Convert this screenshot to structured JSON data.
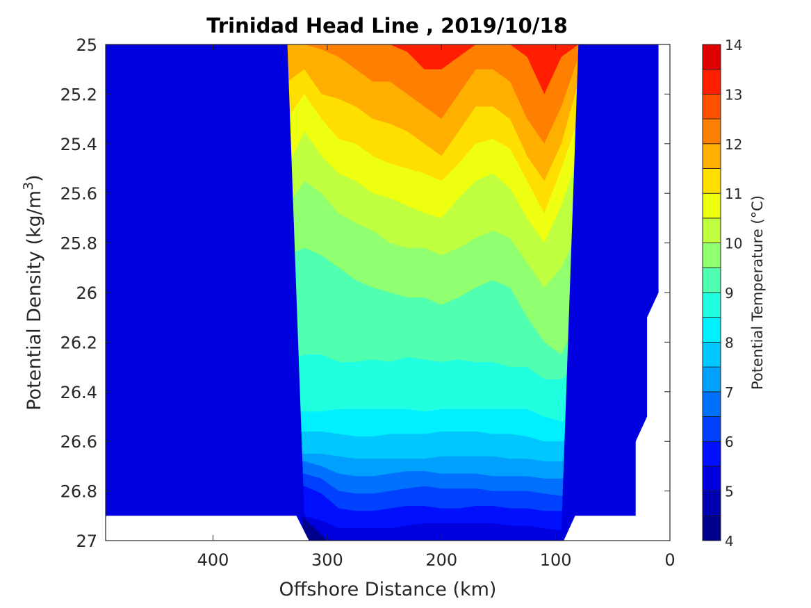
{
  "chart_data": {
    "type": "contourf",
    "title": "Trinidad Head Line , 2019/10/18",
    "xlabel": "Offshore Distance (km)",
    "ylabel": "Potential Density (kg/m",
    "ylabel_superscript": "3",
    "ylabel_suffix": ")",
    "colorbar_label": "Potential Temperature (°C)",
    "xlim": [
      494,
      0
    ],
    "x_reversed": true,
    "ylim": [
      25,
      27
    ],
    "y_reversed": true,
    "xticks": [
      400,
      300,
      200,
      100,
      0
    ],
    "xtick_labels": [
      "400",
      "300",
      "200",
      "100",
      "0"
    ],
    "yticks": [
      25,
      25.2,
      25.4,
      25.6,
      25.8,
      26,
      26.2,
      26.4,
      26.6,
      26.8,
      27
    ],
    "ytick_labels": [
      "25",
      "25.2",
      "25.4",
      "25.6",
      "25.8",
      "26",
      "26.2",
      "26.4",
      "26.6",
      "26.8",
      "27"
    ],
    "colorbar": {
      "range": [
        4,
        14
      ],
      "ticks": [
        4,
        5,
        6,
        7,
        8,
        9,
        10,
        11,
        12,
        13,
        14
      ],
      "tick_labels": [
        "4",
        "5",
        "6",
        "7",
        "8",
        "9",
        "10",
        "11",
        "12",
        "13",
        "14"
      ],
      "levels": [
        4,
        4.5,
        5,
        5.5,
        6,
        6.5,
        7,
        7.5,
        8,
        8.5,
        9,
        9.5,
        10,
        10.5,
        11,
        11.5,
        12,
        12.5,
        13,
        13.5,
        14
      ],
      "colors": [
        "#00008f",
        "#0000b0",
        "#0000df",
        "#0010ff",
        "#0040ff",
        "#0070ff",
        "#00a0ff",
        "#00c8ff",
        "#00f0ff",
        "#20ffdf",
        "#50ffaf",
        "#90ff70",
        "#bfff40",
        "#efff10",
        "#ffdf00",
        "#ffaf00",
        "#ff7f00",
        "#ff4f00",
        "#ff1f00",
        "#df0000",
        "#af0000"
      ],
      "colormap": "jet"
    },
    "x_samples": [
      494,
      480,
      465,
      450,
      440,
      425,
      410,
      395,
      380,
      365,
      350,
      335,
      320,
      305,
      290,
      275,
      260,
      245,
      230,
      215,
      200,
      185,
      170,
      155,
      140,
      125,
      110,
      95,
      80,
      65,
      50,
      35,
      20,
      10
    ],
    "isotherms": [
      {
        "level": 12.5,
        "y": [
          null,
          null,
          null,
          null,
          null,
          null,
          null,
          null,
          null,
          null,
          null,
          null,
          null,
          null,
          null,
          null,
          25.0,
          25.0,
          25.03,
          25.1,
          25.1,
          25.05,
          25.0,
          25.0,
          25.0,
          25.05,
          25.2,
          25.05,
          25.0,
          null,
          null,
          null,
          null,
          25.0
        ]
      },
      {
        "level": 12.0,
        "y": [
          null,
          null,
          null,
          null,
          null,
          null,
          null,
          null,
          null,
          25.0,
          25.0,
          25.0,
          25.0,
          25.02,
          25.05,
          25.1,
          25.15,
          25.15,
          25.2,
          25.25,
          25.3,
          25.2,
          25.1,
          25.1,
          25.15,
          25.3,
          25.4,
          25.25,
          25.05,
          25.0,
          null,
          null,
          25.0,
          25.05
        ]
      },
      {
        "level": 11.5,
        "y": [
          null,
          null,
          null,
          null,
          null,
          null,
          null,
          null,
          null,
          25.0,
          25.0,
          25.15,
          25.1,
          25.2,
          25.22,
          25.25,
          25.3,
          25.32,
          25.35,
          25.4,
          25.45,
          25.35,
          25.25,
          25.25,
          25.3,
          25.45,
          25.55,
          25.4,
          25.15,
          25.0,
          null,
          25.0,
          25.15,
          25.35
        ]
      },
      {
        "level": 11.0,
        "y": [
          25.0,
          25.0,
          25.1,
          25.1,
          25.0,
          null,
          null,
          null,
          null,
          25.05,
          25.2,
          25.3,
          25.2,
          25.3,
          25.38,
          25.4,
          25.45,
          25.48,
          25.5,
          25.52,
          25.55,
          25.48,
          25.4,
          25.38,
          25.42,
          25.55,
          25.68,
          25.5,
          25.3,
          25.05,
          25.0,
          25.05,
          25.3,
          25.55
        ]
      },
      {
        "level": 10.5,
        "y": [
          25.0,
          25.05,
          25.2,
          25.2,
          25.05,
          25.05,
          25.0,
          25.0,
          25.0,
          25.2,
          25.4,
          25.5,
          25.35,
          25.45,
          25.52,
          25.55,
          25.6,
          25.62,
          25.65,
          25.68,
          25.7,
          25.62,
          25.55,
          25.52,
          25.58,
          25.7,
          25.8,
          25.65,
          25.45,
          25.2,
          25.1,
          25.3,
          25.5,
          25.7
        ]
      },
      {
        "level": 10.0,
        "y": [
          25.35,
          25.3,
          25.4,
          25.55,
          25.45,
          25.3,
          25.3,
          25.3,
          25.2,
          25.35,
          25.55,
          25.65,
          25.55,
          25.6,
          25.68,
          25.72,
          25.75,
          25.8,
          25.82,
          25.82,
          25.85,
          25.82,
          25.78,
          25.75,
          25.78,
          25.88,
          25.98,
          25.9,
          25.75,
          25.5,
          25.35,
          25.55,
          25.75,
          25.8
        ]
      },
      {
        "level": 9.5,
        "y": [
          25.65,
          25.55,
          25.65,
          25.85,
          25.75,
          25.55,
          25.5,
          25.45,
          25.35,
          25.55,
          25.75,
          25.85,
          25.82,
          25.85,
          25.9,
          25.95,
          25.98,
          26.0,
          26.02,
          26.02,
          26.05,
          26.02,
          25.98,
          25.95,
          25.98,
          26.1,
          26.2,
          26.25,
          26.1,
          25.9,
          25.95,
          26.08,
          26.1,
          26.1
        ]
      },
      {
        "level": 9.0,
        "y": [
          26.3,
          26.35,
          26.2,
          26.05,
          26.15,
          26.25,
          26.2,
          26.2,
          26.25,
          26.22,
          26.3,
          26.28,
          26.25,
          26.25,
          26.28,
          26.28,
          26.27,
          26.28,
          26.26,
          26.27,
          26.28,
          26.27,
          26.28,
          26.28,
          26.3,
          26.3,
          26.35,
          26.35,
          26.3,
          26.3,
          26.25,
          26.25,
          26.25,
          null
        ]
      },
      {
        "level": 8.5,
        "y": [
          26.45,
          26.5,
          26.45,
          26.45,
          26.47,
          26.48,
          26.47,
          26.48,
          26.48,
          26.47,
          26.47,
          26.47,
          26.48,
          26.48,
          26.47,
          26.47,
          26.47,
          26.47,
          26.47,
          26.48,
          26.47,
          26.47,
          26.47,
          26.47,
          26.47,
          26.47,
          26.5,
          26.52,
          26.5,
          26.48,
          26.45,
          26.45,
          26.45,
          null
        ]
      },
      {
        "level": 8.0,
        "y": [
          26.6,
          26.6,
          26.57,
          26.56,
          26.56,
          26.57,
          26.57,
          26.58,
          26.58,
          26.58,
          26.58,
          26.57,
          26.56,
          26.56,
          26.57,
          26.58,
          26.58,
          26.57,
          26.57,
          26.57,
          26.56,
          26.56,
          26.56,
          26.57,
          26.57,
          26.58,
          26.6,
          26.6,
          26.58,
          26.57,
          26.56,
          26.55,
          26.53,
          null
        ]
      },
      {
        "level": 7.5,
        "y": [
          26.65,
          26.65,
          26.63,
          26.63,
          26.64,
          26.65,
          26.65,
          26.66,
          26.66,
          26.66,
          26.66,
          26.66,
          26.65,
          26.65,
          26.66,
          26.67,
          26.67,
          26.67,
          26.67,
          26.67,
          26.66,
          26.66,
          26.66,
          26.66,
          26.67,
          26.67,
          26.68,
          26.68,
          26.67,
          26.67,
          26.66,
          26.65,
          26.65,
          null
        ]
      },
      {
        "level": 7.0,
        "y": [
          26.72,
          26.72,
          26.7,
          26.69,
          26.7,
          26.71,
          26.72,
          26.72,
          26.72,
          26.71,
          26.7,
          26.69,
          26.68,
          26.7,
          26.73,
          26.74,
          26.74,
          26.73,
          26.72,
          26.72,
          26.73,
          26.73,
          26.73,
          26.74,
          26.74,
          26.74,
          26.75,
          26.75,
          26.74,
          26.73,
          26.72,
          26.72,
          26.72,
          null
        ]
      },
      {
        "level": 6.5,
        "y": [
          26.8,
          26.78,
          26.76,
          26.75,
          26.77,
          26.79,
          26.8,
          26.8,
          26.8,
          26.78,
          26.76,
          26.74,
          26.73,
          26.75,
          26.8,
          26.81,
          26.81,
          26.8,
          26.79,
          26.78,
          26.79,
          26.79,
          26.79,
          26.8,
          26.8,
          26.8,
          26.81,
          26.82,
          26.81,
          26.8,
          26.78,
          26.78,
          26.79,
          null
        ]
      },
      {
        "level": 6.0,
        "y": [
          26.86,
          26.84,
          26.82,
          26.81,
          26.83,
          26.85,
          26.86,
          26.86,
          26.86,
          26.85,
          26.82,
          26.79,
          26.78,
          26.81,
          26.87,
          26.88,
          26.88,
          26.87,
          26.86,
          26.86,
          26.87,
          26.87,
          26.86,
          26.86,
          26.87,
          26.87,
          26.88,
          26.88,
          26.87,
          26.86,
          26.86,
          26.86,
          26.86,
          null
        ]
      },
      {
        "level": 5.5,
        "y": [
          null,
          null,
          null,
          null,
          null,
          null,
          null,
          null,
          null,
          null,
          null,
          null,
          26.9,
          26.92,
          26.95,
          26.95,
          26.95,
          26.95,
          26.94,
          26.93,
          26.93,
          26.93,
          26.93,
          26.93,
          26.94,
          26.94,
          26.95,
          26.96,
          null,
          null,
          null,
          null,
          null,
          null
        ]
      }
    ],
    "data_mask": {
      "description": "white (no data) regions below seafloor and near shore",
      "bottom_left_depth": 26.9,
      "bottom_right_depth": 26.9,
      "deep_window_km": [
        330,
        85
      ]
    }
  }
}
